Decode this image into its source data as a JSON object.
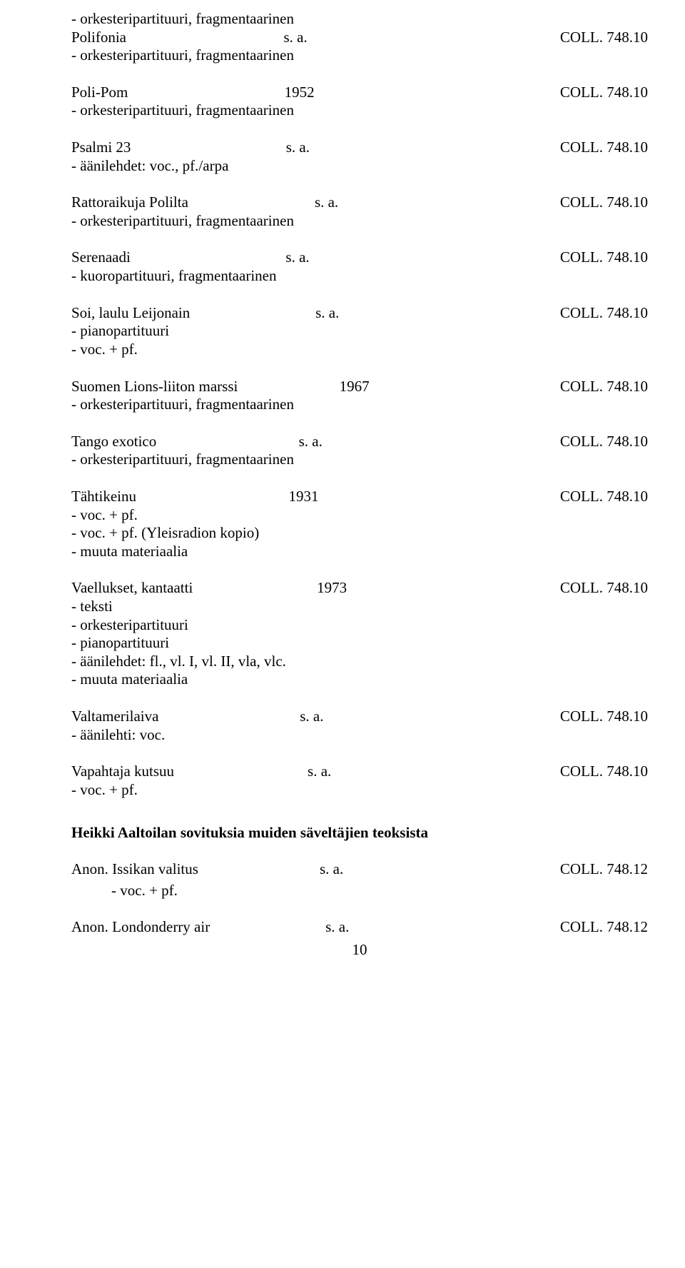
{
  "entries": [
    {
      "preNotes": [
        "- orkesteripartituuri, fragmentaarinen"
      ],
      "title": "Polifonia",
      "date": "s. a.",
      "coll": "COLL. 748.10",
      "notes": [
        "- orkesteripartituuri, fragmentaarinen"
      ]
    },
    {
      "title": "Poli-Pom",
      "date": "1952",
      "coll": "COLL. 748.10",
      "notes": [
        "- orkesteripartituuri, fragmentaarinen"
      ]
    },
    {
      "title": "Psalmi 23",
      "date": "s. a.",
      "coll": "COLL. 748.10",
      "notes": [
        "- äänilehdet: voc., pf./arpa"
      ]
    },
    {
      "title": "Rattoraikuja Polilta",
      "date": "s. a.",
      "coll": "COLL. 748.10",
      "notes": [
        "- orkesteripartituuri, fragmentaarinen"
      ]
    },
    {
      "title": "Serenaadi",
      "date": "s. a.",
      "coll": "COLL. 748.10",
      "notes": [
        "- kuoropartituuri, fragmentaarinen"
      ]
    },
    {
      "title": "Soi, laulu Leijonain",
      "date": "s. a.",
      "coll": "COLL. 748.10",
      "notes": [
        "- pianopartituuri",
        "- voc. + pf."
      ]
    },
    {
      "title": "Suomen Lions-liiton marssi",
      "date": "1967",
      "coll": "COLL. 748.10",
      "notes": [
        "- orkesteripartituuri, fragmentaarinen"
      ]
    },
    {
      "title": "Tango exotico",
      "date": "s. a.",
      "coll": "COLL. 748.10",
      "notes": [
        "- orkesteripartituuri, fragmentaarinen"
      ]
    },
    {
      "title": "Tähtikeinu",
      "date": "1931",
      "coll": "COLL. 748.10",
      "notes": [
        "- voc. + pf.",
        "- voc. + pf. (Yleisradion kopio)",
        "- muuta materiaalia"
      ]
    },
    {
      "title": "Vaellukset, kantaatti",
      "date": "1973",
      "coll": "COLL. 748.10",
      "notes": [
        "- teksti",
        "- orkesteripartituuri",
        "- pianopartituuri",
        "- äänilehdet: fl., vl. I, vl. II, vla, vlc.",
        "- muuta materiaalia"
      ]
    },
    {
      "title": "Valtamerilaiva",
      "date": "s. a.",
      "coll": "COLL. 748.10",
      "notes": [
        "- äänilehti: voc."
      ]
    },
    {
      "title": "Vapahtaja kutsuu",
      "date": "s. a.",
      "coll": "COLL. 748.10",
      "notes": [
        "- voc. + pf."
      ]
    }
  ],
  "sectionHeading": "Heikki Aaltoilan sovituksia muiden säveltäjien teoksista",
  "anonEntries": [
    {
      "title": "Anon. Issikan valitus",
      "date": "s. a.",
      "coll": "COLL. 748.12",
      "sub": "-   voc. + pf."
    },
    {
      "title": "Anon. Londonderry air",
      "date": "s. a.",
      "coll": "COLL. 748.12"
    }
  ],
  "pageNumber": "10"
}
